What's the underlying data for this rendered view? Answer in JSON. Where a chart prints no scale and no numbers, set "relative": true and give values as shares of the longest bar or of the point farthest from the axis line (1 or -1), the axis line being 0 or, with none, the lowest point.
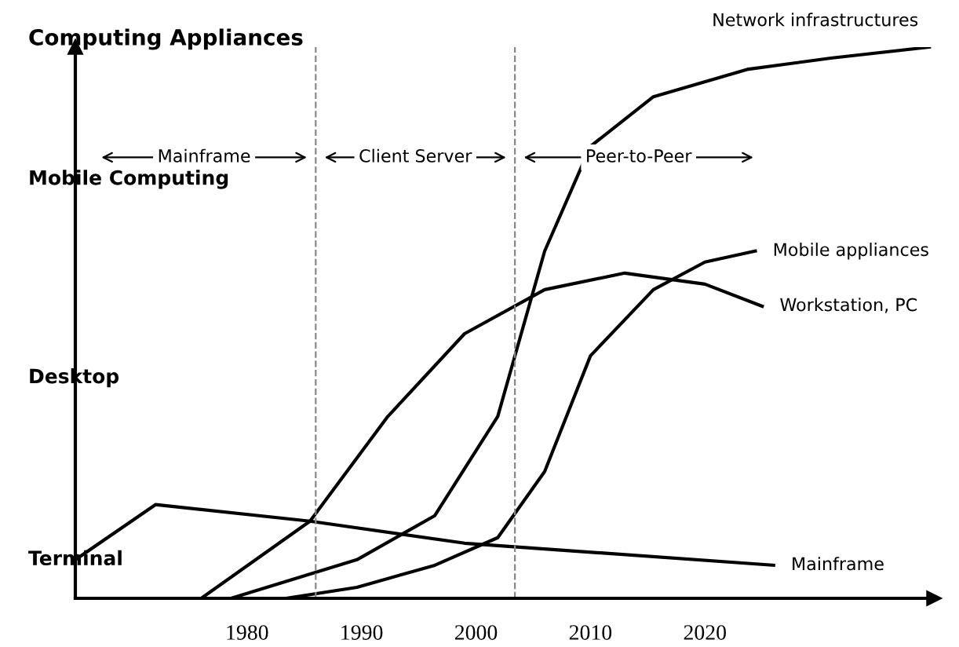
{
  "chart_data": {
    "type": "line",
    "relative": true,
    "ylabel": "Computing Appliances",
    "xlim": [
      1965,
      2040
    ],
    "xticks": [
      1980,
      1990,
      2000,
      2010,
      2020
    ],
    "tick_labels": "x",
    "grid": false,
    "legend": false,
    "marker": "none",
    "line_style": "solid",
    "series": [
      {
        "name": "Mainframe",
        "color": "#000000",
        "x": [
          1965,
          1972,
          1985.5,
          1999,
          2026
        ],
        "values": [
          0.07,
          0.17,
          0.14,
          0.1,
          0.06
        ]
      },
      {
        "name": "Workstation, PC",
        "color": "#000000",
        "x": [
          1976,
          1985.5,
          1992.3,
          1999,
          2006,
          2013,
          2020,
          2025
        ],
        "values": [
          0,
          0.14,
          0.33,
          0.48,
          0.56,
          0.59,
          0.57,
          0.53
        ]
      },
      {
        "name": "Network infrastructures",
        "color": "#000000",
        "x": [
          1978.6,
          1989.6,
          1996.4,
          2001.9,
          2006,
          2010,
          2015.5,
          2023.8,
          2031,
          2039.6
        ],
        "values": [
          0,
          0.07,
          0.15,
          0.33,
          0.63,
          0.82,
          0.91,
          0.96,
          0.98,
          1
        ]
      },
      {
        "name": "Mobile appliances",
        "color": "#000000",
        "x": [
          1983.4,
          1989.6,
          1996.4,
          2001.9,
          2006,
          2010,
          2015.5,
          2020,
          2024.4
        ],
        "values": [
          0,
          0.02,
          0.06,
          0.11,
          0.23,
          0.44,
          0.56,
          0.61,
          0.63
        ]
      }
    ],
    "ref_lines": [
      {
        "axis": "x",
        "value": 1986,
        "color": "#888888",
        "line_style": "dashed"
      },
      {
        "axis": "x",
        "value": 2003.4,
        "color": "#888888",
        "line_style": "dashed"
      }
    ],
    "annotations": [
      "Terminal",
      "Desktop",
      "Mobile Computing",
      "Mainframe",
      "Client Server",
      "Peer-to-Peer"
    ]
  }
}
